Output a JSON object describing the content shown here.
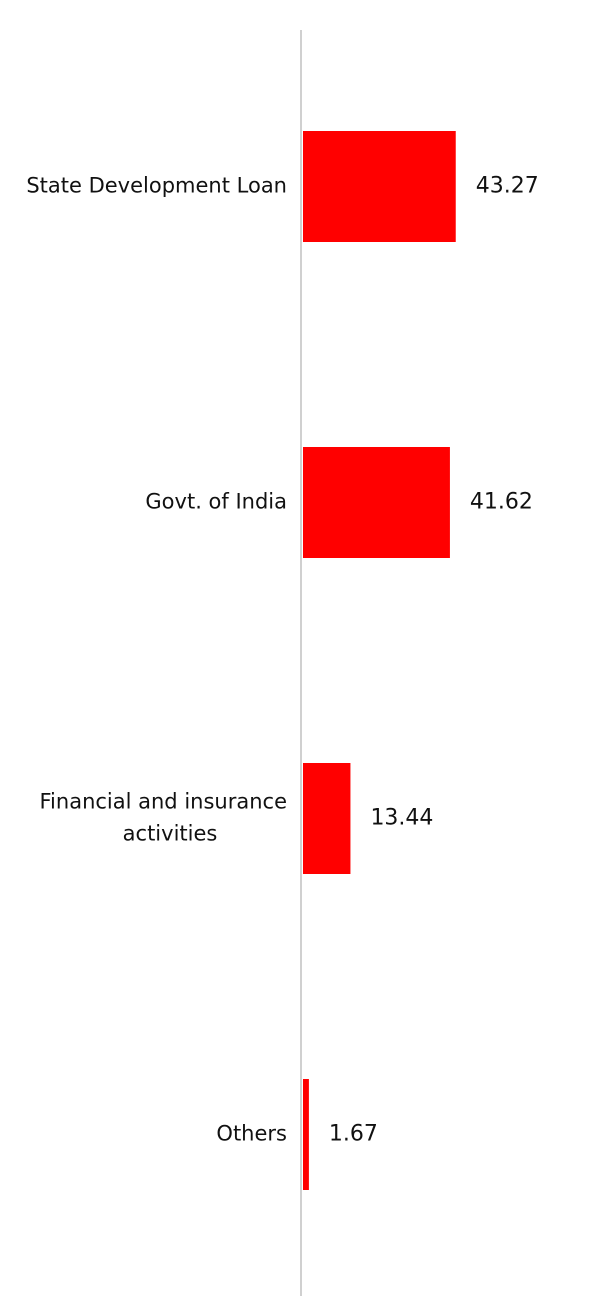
{
  "chart_data": {
    "type": "bar",
    "orientation": "horizontal",
    "categories": [
      "State Development Loan",
      "Govt. of India",
      "Financial and insurance activities",
      "Others"
    ],
    "category_lines": [
      [
        "State Development Loan"
      ],
      [
        "Govt. of India"
      ],
      [
        "Financial and insurance",
        "activities"
      ],
      [
        "Others"
      ]
    ],
    "values": [
      43.27,
      41.62,
      13.44,
      1.67
    ],
    "value_labels": [
      "43.27",
      "41.62",
      "13.44",
      "1.67"
    ],
    "xlim": [
      0,
      100
    ],
    "grid": false,
    "bar_color": "#ff0000",
    "axis_color": "#d0d0d0"
  }
}
